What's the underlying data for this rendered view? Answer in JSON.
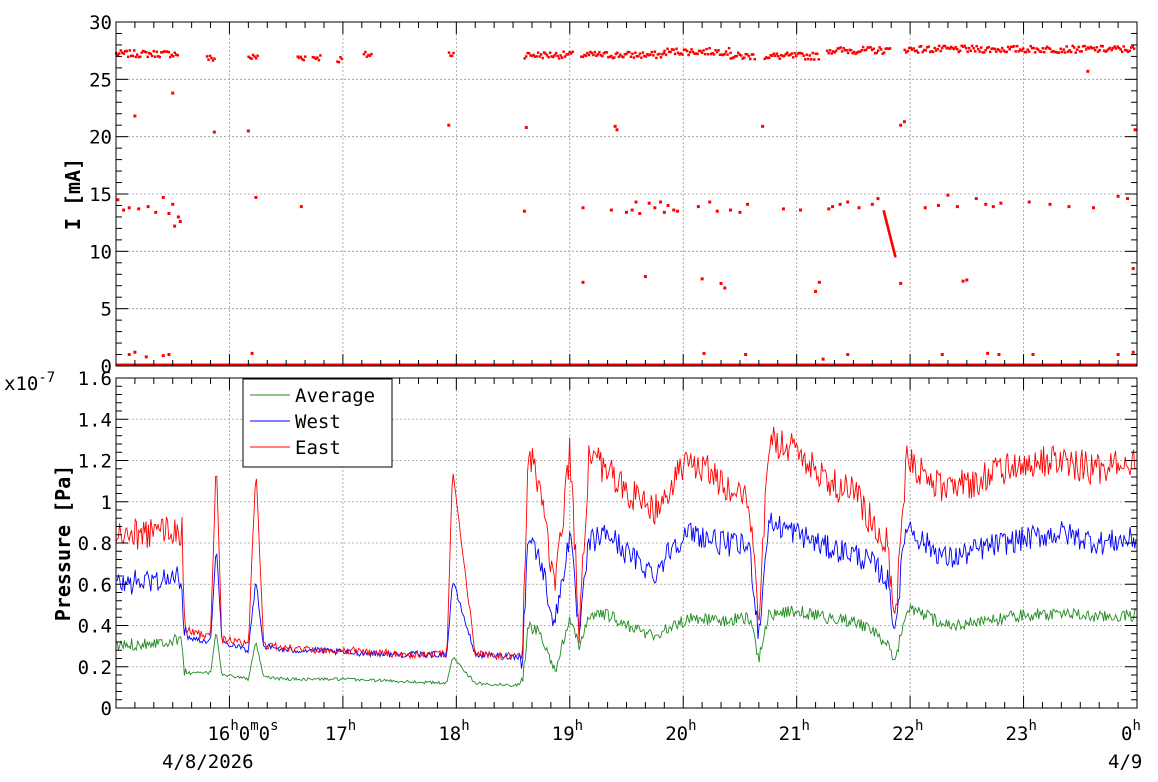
{
  "chart_data": [
    {
      "type": "scatter",
      "ylabel": "I [mA]",
      "ylim": [
        0,
        30
      ],
      "yticks": [
        0,
        5,
        10,
        15,
        20,
        25,
        30
      ],
      "ytick_labels": [
        "0",
        "5",
        "10",
        "15",
        "20",
        "25",
        "30"
      ],
      "xlim": [
        "2026-04-08 15:00",
        "2026-04-09 00:00"
      ],
      "grid": true,
      "series": [
        {
          "color": "#ff0000",
          "marker": "square",
          "segments_main_band": [
            {
              "x": [
                "15:00",
                "15:33"
              ],
              "y": 27.2
            },
            {
              "x": [
                "15:48",
                "15:52"
              ],
              "y": 26.8
            },
            {
              "x": [
                "16:10",
                "16:15"
              ],
              "y": 26.9
            },
            {
              "x": [
                "16:36",
                "16:40"
              ],
              "y": 26.9
            },
            {
              "x": [
                "16:44",
                "16:48"
              ],
              "y": 26.9
            },
            {
              "x": [
                "16:57",
                "17:00"
              ],
              "y": 26.7
            },
            {
              "x": [
                "17:11",
                "17:15"
              ],
              "y": 27.1
            },
            {
              "x": [
                "17:56",
                "17:59"
              ],
              "y": 27.2
            },
            {
              "x": [
                "18:36",
                "19:02"
              ],
              "y": 27.1
            },
            {
              "x": [
                "19:06",
                "19:50"
              ],
              "y": 27.1
            },
            {
              "x": [
                "19:50",
                "20:25"
              ],
              "y": 27.4
            },
            {
              "x": [
                "20:25",
                "20:38"
              ],
              "y": 27.0
            },
            {
              "x": [
                "20:43",
                "21:12"
              ],
              "y": 27.0
            },
            {
              "x": [
                "21:16",
                "21:50"
              ],
              "y": 27.5
            },
            {
              "x": [
                "21:57",
                "23:59"
              ],
              "y": 27.6
            }
          ],
          "baseline_y": 0,
          "decay_ramp": {
            "x": [
              "21:46",
              "21:52"
            ],
            "y": [
              13.5,
              9.6
            ]
          },
          "scattered_points": [
            {
              "x": "15:01",
              "y": 14.5
            },
            {
              "x": "15:04",
              "y": 13.6
            },
            {
              "x": "15:07",
              "y": 13.8
            },
            {
              "x": "15:12",
              "y": 13.7
            },
            {
              "x": "15:17",
              "y": 13.9
            },
            {
              "x": "15:21",
              "y": 13.4
            },
            {
              "x": "15:25",
              "y": 14.7
            },
            {
              "x": "15:28",
              "y": 13.3
            },
            {
              "x": "15:30",
              "y": 14.1
            },
            {
              "x": "15:31",
              "y": 12.2
            },
            {
              "x": "15:33",
              "y": 13.0
            },
            {
              "x": "15:34",
              "y": 12.6
            },
            {
              "x": "15:10",
              "y": 21.8
            },
            {
              "x": "15:30",
              "y": 23.8
            },
            {
              "x": "15:52",
              "y": 20.4
            },
            {
              "x": "16:10",
              "y": 20.5
            },
            {
              "x": "16:14",
              "y": 14.7
            },
            {
              "x": "16:38",
              "y": 13.9
            },
            {
              "x": "17:56",
              "y": 21.0
            },
            {
              "x": "18:37",
              "y": 20.8
            },
            {
              "x": "18:36",
              "y": 13.5
            },
            {
              "x": "19:07",
              "y": 13.8
            },
            {
              "x": "19:07",
              "y": 7.3
            },
            {
              "x": "19:22",
              "y": 13.6
            },
            {
              "x": "19:24",
              "y": 20.9
            },
            {
              "x": "19:25",
              "y": 20.6
            },
            {
              "x": "19:30",
              "y": 13.4
            },
            {
              "x": "19:33",
              "y": 13.6
            },
            {
              "x": "19:35",
              "y": 14.3
            },
            {
              "x": "19:37",
              "y": 13.3
            },
            {
              "x": "19:40",
              "y": 7.8
            },
            {
              "x": "19:42",
              "y": 14.2
            },
            {
              "x": "19:45",
              "y": 13.8
            },
            {
              "x": "19:48",
              "y": 14.3
            },
            {
              "x": "19:50",
              "y": 13.4
            },
            {
              "x": "19:52",
              "y": 14.0
            },
            {
              "x": "19:55",
              "y": 13.6
            },
            {
              "x": "19:57",
              "y": 13.5
            },
            {
              "x": "20:08",
              "y": 13.9
            },
            {
              "x": "20:10",
              "y": 7.6
            },
            {
              "x": "20:14",
              "y": 14.3
            },
            {
              "x": "20:18",
              "y": 13.5
            },
            {
              "x": "20:20",
              "y": 7.2
            },
            {
              "x": "20:22",
              "y": 6.8
            },
            {
              "x": "20:25",
              "y": 13.6
            },
            {
              "x": "20:30",
              "y": 13.4
            },
            {
              "x": "20:34",
              "y": 14.1
            },
            {
              "x": "20:42",
              "y": 20.9
            },
            {
              "x": "20:53",
              "y": 13.7
            },
            {
              "x": "21:02",
              "y": 13.6
            },
            {
              "x": "21:10",
              "y": 6.5
            },
            {
              "x": "21:12",
              "y": 7.3
            },
            {
              "x": "21:17",
              "y": 13.7
            },
            {
              "x": "21:19",
              "y": 13.9
            },
            {
              "x": "21:23",
              "y": 14.1
            },
            {
              "x": "21:27",
              "y": 14.3
            },
            {
              "x": "21:33",
              "y": 13.8
            },
            {
              "x": "21:40",
              "y": 14.1
            },
            {
              "x": "21:43",
              "y": 14.6
            },
            {
              "x": "21:55",
              "y": 21.0
            },
            {
              "x": "21:57",
              "y": 21.3
            },
            {
              "x": "21:55",
              "y": 7.2
            },
            {
              "x": "22:08",
              "y": 13.8
            },
            {
              "x": "22:15",
              "y": 14.0
            },
            {
              "x": "22:20",
              "y": 14.9
            },
            {
              "x": "22:25",
              "y": 13.9
            },
            {
              "x": "22:28",
              "y": 7.4
            },
            {
              "x": "22:30",
              "y": 7.5
            },
            {
              "x": "22:35",
              "y": 14.6
            },
            {
              "x": "22:40",
              "y": 14.1
            },
            {
              "x": "22:44",
              "y": 13.9
            },
            {
              "x": "22:48",
              "y": 14.2
            },
            {
              "x": "23:03",
              "y": 14.3
            },
            {
              "x": "23:14",
              "y": 14.1
            },
            {
              "x": "23:24",
              "y": 13.9
            },
            {
              "x": "23:34",
              "y": 25.7
            },
            {
              "x": "23:37",
              "y": 13.8
            },
            {
              "x": "23:50",
              "y": 14.8
            },
            {
              "x": "23:55",
              "y": 14.6
            },
            {
              "x": "23:59",
              "y": 20.6
            },
            {
              "x": "23:58",
              "y": 8.5
            }
          ],
          "near_zero_points": [
            {
              "x": "15:07",
              "y": 1.0
            },
            {
              "x": "15:10",
              "y": 1.2
            },
            {
              "x": "15:16",
              "y": 0.8
            },
            {
              "x": "15:25",
              "y": 0.9
            },
            {
              "x": "15:28",
              "y": 1.0
            },
            {
              "x": "16:12",
              "y": 1.1
            },
            {
              "x": "20:11",
              "y": 1.1
            },
            {
              "x": "20:33",
              "y": 1.0
            },
            {
              "x": "21:14",
              "y": 0.6
            },
            {
              "x": "21:27",
              "y": 1.0
            },
            {
              "x": "22:17",
              "y": 1.0
            },
            {
              "x": "22:41",
              "y": 1.1
            },
            {
              "x": "22:47",
              "y": 1.0
            },
            {
              "x": "23:05",
              "y": 1.0
            },
            {
              "x": "23:50",
              "y": 1.0
            },
            {
              "x": "23:58",
              "y": 1.2
            }
          ]
        }
      ]
    },
    {
      "type": "line",
      "ylabel": "Pressure [Pa]",
      "exponent_label": "x10",
      "exponent_power": "-7",
      "ylim": [
        0,
        1.6
      ],
      "yticks": [
        0,
        0.2,
        0.4,
        0.6,
        0.8,
        1.0,
        1.2,
        1.4,
        1.6
      ],
      "ytick_labels": [
        "0",
        "0.2",
        "0.4",
        "0.6",
        "0.8",
        "1",
        "1.2",
        "1.4",
        "1.6"
      ],
      "xlim": [
        "2026-04-08 15:00",
        "2026-04-09 00:00"
      ],
      "grid": true,
      "legend_position": "top-left",
      "series": [
        {
          "name": "Average",
          "color": "#228b22",
          "x": [
            "15:00",
            "15:20",
            "15:35",
            "15:36",
            "15:50",
            "15:53",
            "15:56",
            "16:05",
            "16:10",
            "16:14",
            "16:18",
            "16:30",
            "16:45",
            "17:00",
            "17:30",
            "17:55",
            "17:58",
            "18:10",
            "18:30",
            "18:35",
            "18:38",
            "18:45",
            "18:52",
            "19:00",
            "19:05",
            "19:10",
            "19:20",
            "19:30",
            "19:45",
            "19:55",
            "20:05",
            "20:20",
            "20:35",
            "20:40",
            "20:45",
            "21:00",
            "21:15",
            "21:30",
            "21:40",
            "21:48",
            "21:52",
            "21:58",
            "22:05",
            "22:20",
            "22:40",
            "23:00",
            "23:20",
            "23:40",
            "23:59"
          ],
          "y": [
            0.3,
            0.32,
            0.33,
            0.17,
            0.17,
            0.38,
            0.16,
            0.15,
            0.14,
            0.32,
            0.15,
            0.14,
            0.14,
            0.14,
            0.13,
            0.12,
            0.25,
            0.12,
            0.11,
            0.12,
            0.4,
            0.36,
            0.18,
            0.42,
            0.3,
            0.45,
            0.45,
            0.4,
            0.35,
            0.4,
            0.44,
            0.42,
            0.44,
            0.24,
            0.45,
            0.47,
            0.44,
            0.42,
            0.38,
            0.3,
            0.22,
            0.48,
            0.46,
            0.4,
            0.42,
            0.45,
            0.46,
            0.44,
            0.45
          ]
        },
        {
          "name": "West",
          "color": "#0000ff",
          "x": [
            "15:00",
            "15:20",
            "15:35",
            "15:36",
            "15:50",
            "15:53",
            "15:56",
            "16:05",
            "16:10",
            "16:14",
            "16:18",
            "16:30",
            "16:45",
            "17:00",
            "17:30",
            "17:55",
            "17:58",
            "18:10",
            "18:30",
            "18:35",
            "18:38",
            "18:45",
            "18:52",
            "19:00",
            "19:05",
            "19:10",
            "19:20",
            "19:30",
            "19:45",
            "19:55",
            "20:05",
            "20:20",
            "20:35",
            "20:40",
            "20:45",
            "21:00",
            "21:15",
            "21:30",
            "21:40",
            "21:48",
            "21:52",
            "21:58",
            "22:05",
            "22:20",
            "22:40",
            "23:00",
            "23:20",
            "23:40",
            "23:59"
          ],
          "y": [
            0.6,
            0.62,
            0.63,
            0.35,
            0.32,
            0.8,
            0.32,
            0.3,
            0.28,
            0.62,
            0.3,
            0.28,
            0.28,
            0.27,
            0.26,
            0.26,
            0.62,
            0.26,
            0.25,
            0.25,
            0.85,
            0.7,
            0.4,
            0.85,
            0.35,
            0.8,
            0.85,
            0.75,
            0.65,
            0.8,
            0.85,
            0.8,
            0.78,
            0.35,
            0.9,
            0.85,
            0.78,
            0.75,
            0.7,
            0.62,
            0.38,
            0.9,
            0.82,
            0.72,
            0.78,
            0.82,
            0.85,
            0.8,
            0.82
          ]
        },
        {
          "name": "East",
          "color": "#ff0000",
          "x": [
            "15:00",
            "15:20",
            "15:35",
            "15:36",
            "15:50",
            "15:53",
            "15:56",
            "16:05",
            "16:10",
            "16:14",
            "16:18",
            "16:30",
            "16:45",
            "17:00",
            "17:30",
            "17:55",
            "17:58",
            "18:10",
            "18:30",
            "18:35",
            "18:38",
            "18:45",
            "18:52",
            "19:00",
            "19:05",
            "19:10",
            "19:20",
            "19:30",
            "19:45",
            "19:55",
            "20:05",
            "20:20",
            "20:35",
            "20:40",
            "20:45",
            "21:00",
            "21:15",
            "21:30",
            "21:40",
            "21:48",
            "21:52",
            "21:58",
            "22:05",
            "22:20",
            "22:40",
            "23:00",
            "23:20",
            "23:40",
            "23:59"
          ],
          "y": [
            0.82,
            0.85,
            0.86,
            0.38,
            0.34,
            1.2,
            0.33,
            0.32,
            0.3,
            1.18,
            0.31,
            0.29,
            0.28,
            0.28,
            0.26,
            0.26,
            1.15,
            0.26,
            0.25,
            0.25,
            1.25,
            1.05,
            0.55,
            1.25,
            0.38,
            1.22,
            1.15,
            1.05,
            0.95,
            1.1,
            1.2,
            1.1,
            1.02,
            0.4,
            1.3,
            1.25,
            1.1,
            1.05,
            0.9,
            0.8,
            0.4,
            1.2,
            1.15,
            1.05,
            1.12,
            1.18,
            1.2,
            1.15,
            1.2
          ]
        }
      ]
    }
  ],
  "x_axis": {
    "tick_labels": [
      {
        "x": "16:00",
        "hour": "16",
        "h": "h",
        "min": "0",
        "m": "m",
        "sec": "0",
        "s": "s"
      },
      {
        "x": "17:00",
        "hour": "17",
        "h": "h"
      },
      {
        "x": "18:00",
        "hour": "18",
        "h": "h"
      },
      {
        "x": "19:00",
        "hour": "19",
        "h": "h"
      },
      {
        "x": "20:00",
        "hour": "20",
        "h": "h"
      },
      {
        "x": "21:00",
        "hour": "21",
        "h": "h"
      },
      {
        "x": "22:00",
        "hour": "22",
        "h": "h"
      },
      {
        "x": "23:00",
        "hour": "23",
        "h": "h"
      },
      {
        "x": "00:00",
        "hour": "0",
        "h": "h"
      }
    ],
    "date_left": "4/8/2026",
    "date_right": "4/9"
  }
}
